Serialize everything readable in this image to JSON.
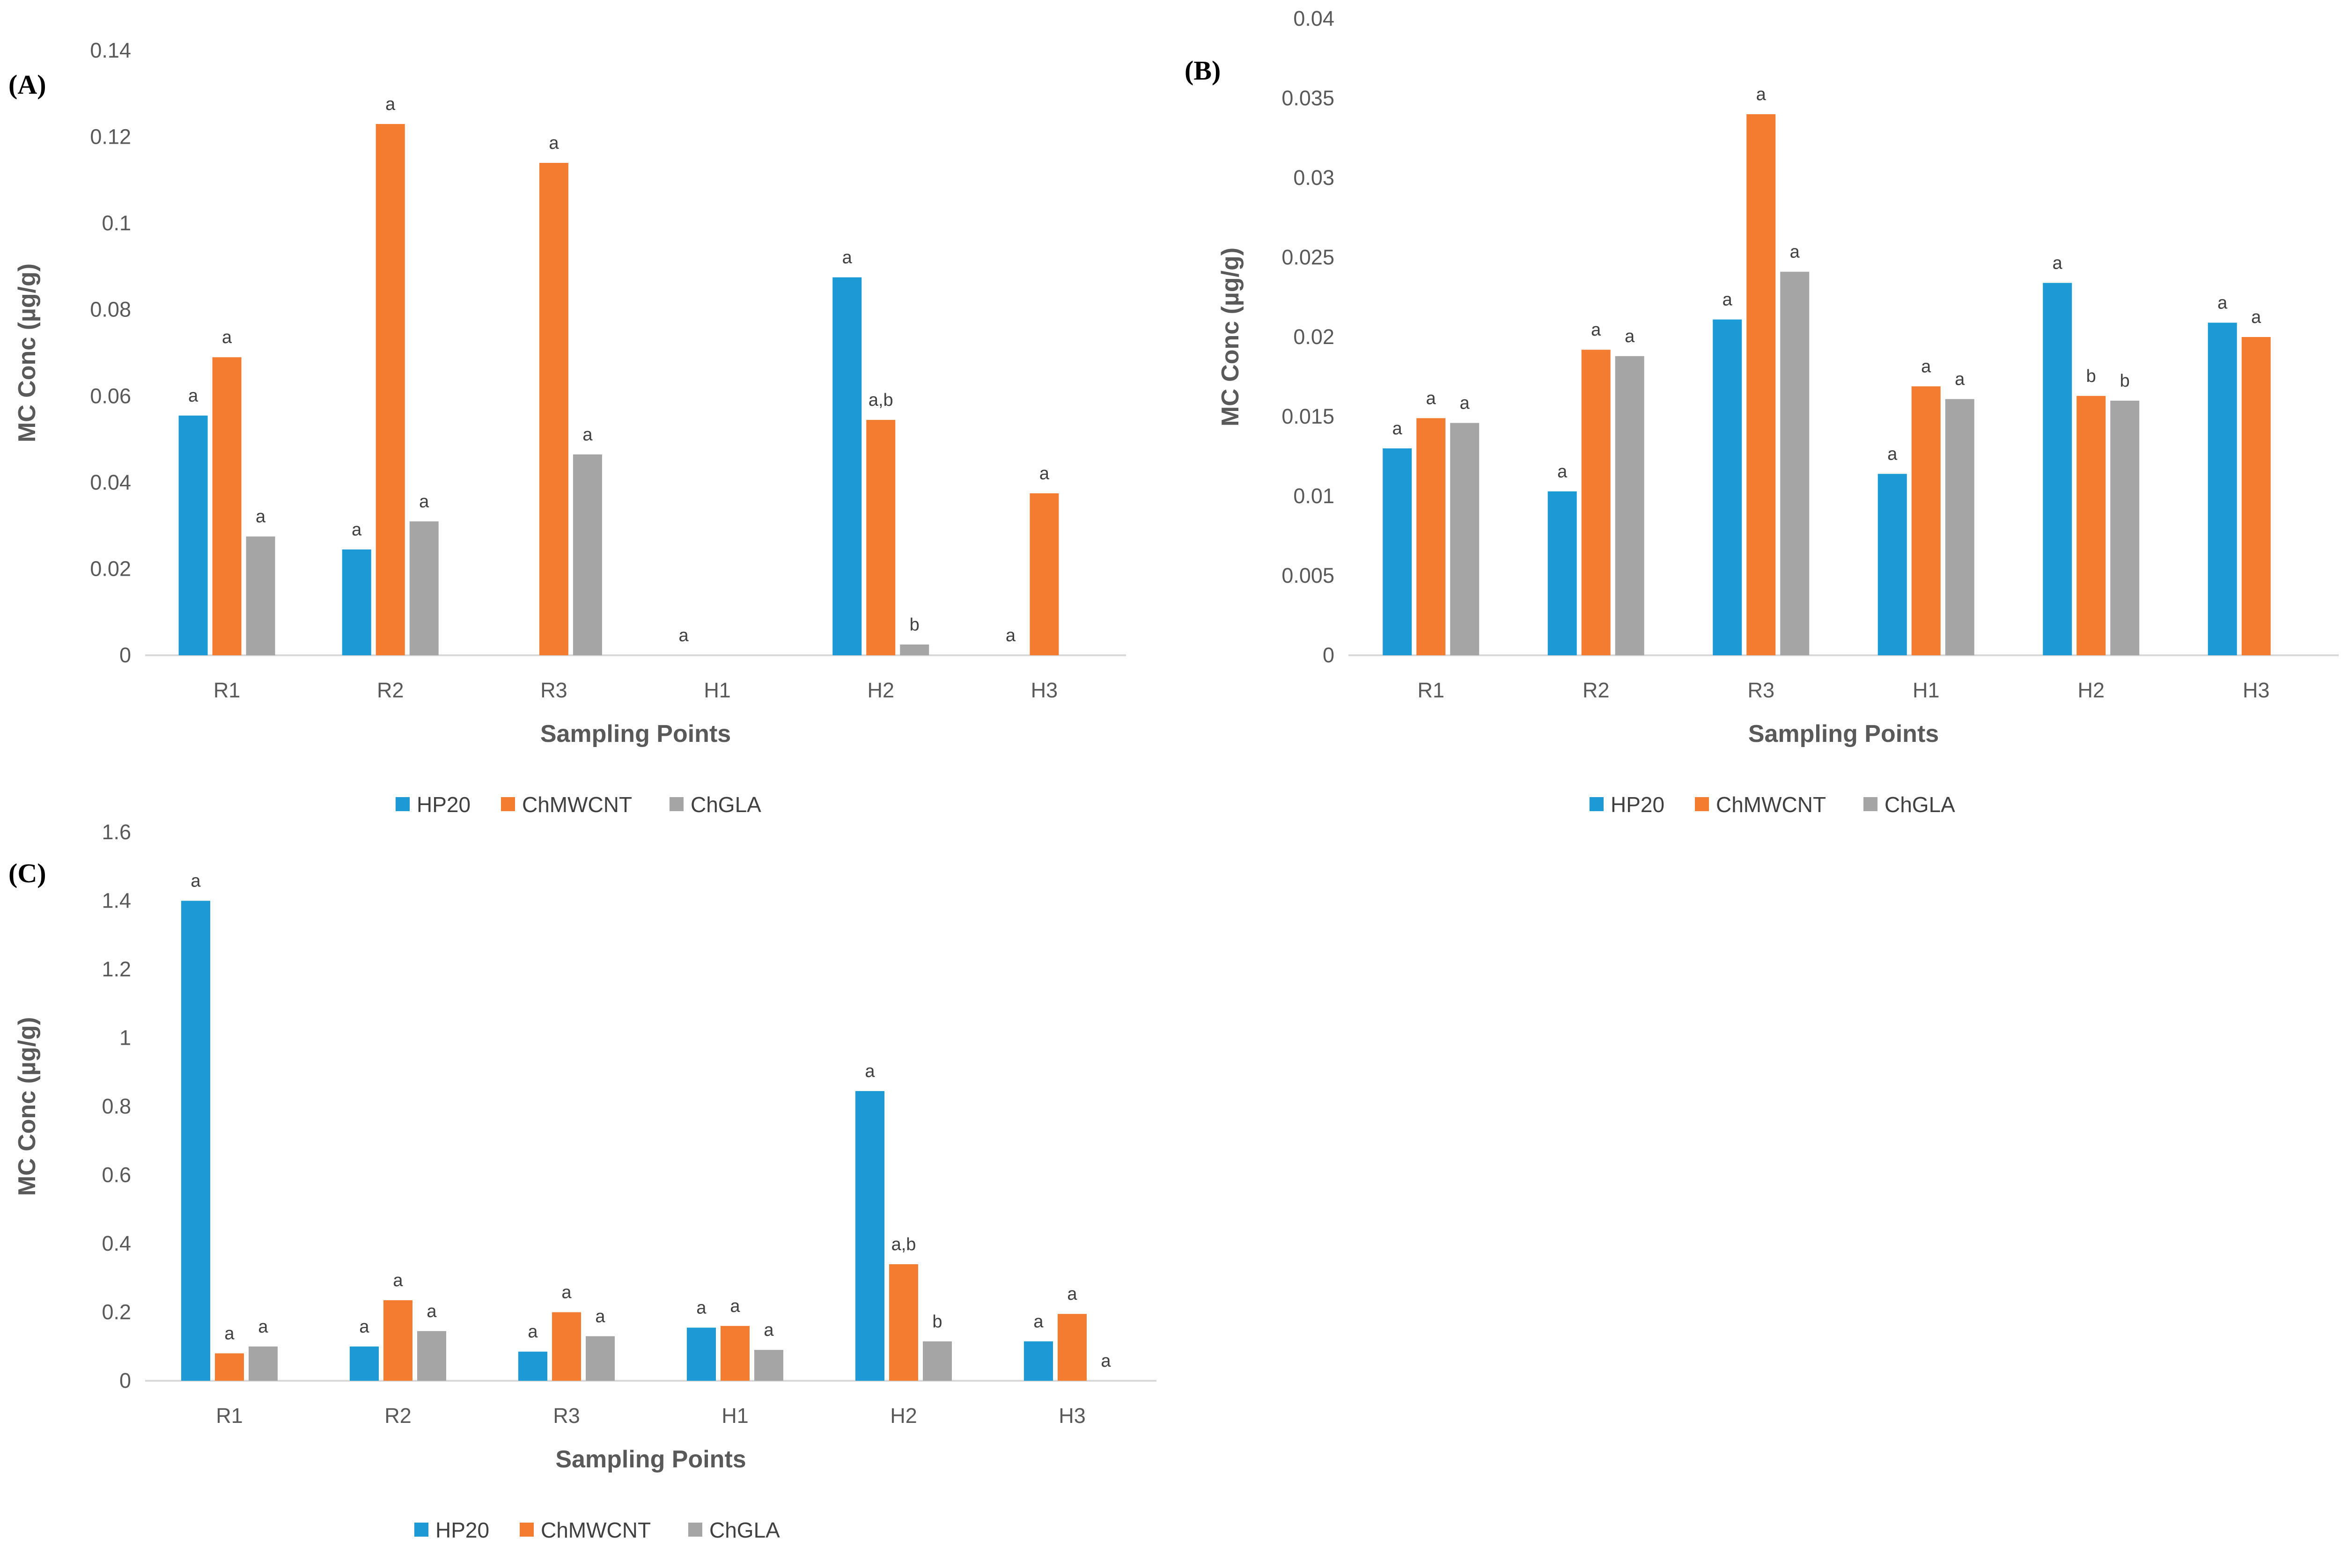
{
  "colors": {
    "HP20": "#1B9AD6",
    "ChMWCNT": "#F47C30",
    "ChGLA": "#A5A5A5",
    "axis": "#D9D9D9",
    "text": "#595959"
  },
  "chart_data": [
    {
      "type": "bar",
      "panel_label": "(A)",
      "categories": [
        "R1",
        "R2",
        "R3",
        "H1",
        "H2",
        "H3"
      ],
      "series": [
        {
          "name": "HP20",
          "values": [
            0.0555,
            0.0245,
            0,
            0,
            0.0875,
            0
          ]
        },
        {
          "name": "ChMWCNT",
          "values": [
            0.069,
            0.123,
            0.114,
            0,
            0.0545,
            0.0375
          ]
        },
        {
          "name": "ChGLA",
          "values": [
            0.0275,
            0.031,
            0.0465,
            0,
            0.0025,
            0
          ]
        }
      ],
      "data_labels": [
        {
          "category": "R1",
          "series": "HP20",
          "text": "a"
        },
        {
          "category": "R1",
          "series": "ChMWCNT",
          "text": "a"
        },
        {
          "category": "R1",
          "series": "ChGLA",
          "text": "a"
        },
        {
          "category": "R2",
          "series": "HP20",
          "text": "a"
        },
        {
          "category": "R2",
          "series": "ChMWCNT",
          "text": "a"
        },
        {
          "category": "R2",
          "series": "ChGLA",
          "text": "a"
        },
        {
          "category": "R3",
          "series": "ChMWCNT",
          "text": "a"
        },
        {
          "category": "R3",
          "series": "ChGLA",
          "text": "a"
        },
        {
          "category": "H1",
          "series": "HP20",
          "text": "a"
        },
        {
          "category": "H2",
          "series": "HP20",
          "text": "a"
        },
        {
          "category": "H2",
          "series": "ChMWCNT",
          "text": "a,b"
        },
        {
          "category": "H2",
          "series": "ChGLA",
          "text": "b"
        },
        {
          "category": "H3",
          "series": "HP20",
          "text": "a"
        },
        {
          "category": "H3",
          "series": "ChMWCNT",
          "text": "a"
        }
      ],
      "ylim": [
        0,
        0.14
      ],
      "yticks": [
        "0",
        "0.02",
        "0.04",
        "0.06",
        "0.08",
        "0.1",
        "0.12",
        "0.14"
      ],
      "xlabel": "Sampling Points",
      "ylabel": "MC Conc (µg/g)",
      "legend": [
        "HP20",
        "ChMWCNT",
        "ChGLA"
      ],
      "legend_position": "bottom",
      "grid": false
    },
    {
      "type": "bar",
      "panel_label": "(B)",
      "categories": [
        "R1",
        "R2",
        "R3",
        "H1",
        "H2",
        "H3"
      ],
      "series": [
        {
          "name": "HP20",
          "values": [
            0.013,
            0.0103,
            0.0211,
            0.0114,
            0.0234,
            0.0209
          ]
        },
        {
          "name": "ChMWCNT",
          "values": [
            0.0149,
            0.0192,
            0.034,
            0.0169,
            0.0163,
            0.02
          ]
        },
        {
          "name": "ChGLA",
          "values": [
            0.0146,
            0.0188,
            0.0241,
            0.0161,
            0.016,
            0
          ]
        }
      ],
      "data_labels": [
        {
          "category": "R1",
          "series": "HP20",
          "text": "a"
        },
        {
          "category": "R1",
          "series": "ChMWCNT",
          "text": "a"
        },
        {
          "category": "R1",
          "series": "ChGLA",
          "text": "a"
        },
        {
          "category": "R2",
          "series": "HP20",
          "text": "a"
        },
        {
          "category": "R2",
          "series": "ChMWCNT",
          "text": "a"
        },
        {
          "category": "R2",
          "series": "ChGLA",
          "text": "a"
        },
        {
          "category": "R3",
          "series": "HP20",
          "text": "a"
        },
        {
          "category": "R3",
          "series": "ChMWCNT",
          "text": "a"
        },
        {
          "category": "R3",
          "series": "ChGLA",
          "text": "a"
        },
        {
          "category": "H1",
          "series": "HP20",
          "text": "a"
        },
        {
          "category": "H1",
          "series": "ChMWCNT",
          "text": "a"
        },
        {
          "category": "H1",
          "series": "ChGLA",
          "text": "a"
        },
        {
          "category": "H2",
          "series": "HP20",
          "text": "a"
        },
        {
          "category": "H2",
          "series": "ChMWCNT",
          "text": "b"
        },
        {
          "category": "H2",
          "series": "ChGLA",
          "text": "b"
        },
        {
          "category": "H3",
          "series": "HP20",
          "text": "a"
        },
        {
          "category": "H3",
          "series": "ChMWCNT",
          "text": "a"
        }
      ],
      "ylim": [
        0,
        0.04
      ],
      "yticks": [
        "0",
        "0.005",
        "0.01",
        "0.015",
        "0.02",
        "0.025",
        "0.03",
        "0.035",
        "0.04"
      ],
      "xlabel": "Sampling Points",
      "ylabel": "MC Conc (µg/g)",
      "legend": [
        "HP20",
        "ChMWCNT",
        "ChGLA"
      ],
      "legend_position": "bottom",
      "grid": false
    },
    {
      "type": "bar",
      "panel_label": "(C)",
      "categories": [
        "R1",
        "R2",
        "R3",
        "H1",
        "H2",
        "H3"
      ],
      "series": [
        {
          "name": "HP20",
          "values": [
            1.4,
            0.1,
            0.085,
            0.155,
            0.845,
            0.115
          ]
        },
        {
          "name": "ChMWCNT",
          "values": [
            0.08,
            0.235,
            0.2,
            0.16,
            0.34,
            0.195
          ]
        },
        {
          "name": "ChGLA",
          "values": [
            0.1,
            0.145,
            0.13,
            0.09,
            0.115,
            0
          ]
        }
      ],
      "data_labels": [
        {
          "category": "R1",
          "series": "HP20",
          "text": "a"
        },
        {
          "category": "R1",
          "series": "ChMWCNT",
          "text": "a"
        },
        {
          "category": "R1",
          "series": "ChGLA",
          "text": "a"
        },
        {
          "category": "R2",
          "series": "HP20",
          "text": "a"
        },
        {
          "category": "R2",
          "series": "ChMWCNT",
          "text": "a"
        },
        {
          "category": "R2",
          "series": "ChGLA",
          "text": "a"
        },
        {
          "category": "R3",
          "series": "HP20",
          "text": "a"
        },
        {
          "category": "R3",
          "series": "ChMWCNT",
          "text": "a"
        },
        {
          "category": "R3",
          "series": "ChGLA",
          "text": "a"
        },
        {
          "category": "H1",
          "series": "HP20",
          "text": "a"
        },
        {
          "category": "H1",
          "series": "ChMWCNT",
          "text": "a"
        },
        {
          "category": "H1",
          "series": "ChGLA",
          "text": "a"
        },
        {
          "category": "H2",
          "series": "HP20",
          "text": "a"
        },
        {
          "category": "H2",
          "series": "ChMWCNT",
          "text": "a,b"
        },
        {
          "category": "H2",
          "series": "ChGLA",
          "text": "b"
        },
        {
          "category": "H3",
          "series": "HP20",
          "text": "a"
        },
        {
          "category": "H3",
          "series": "ChMWCNT",
          "text": "a"
        },
        {
          "category": "H3",
          "series": "ChGLA",
          "text": "a"
        }
      ],
      "ylim": [
        0,
        1.6
      ],
      "yticks": [
        "0",
        "0.2",
        "0.4",
        "0.6",
        "0.8",
        "1",
        "1.2",
        "1.4",
        "1.6"
      ],
      "xlabel": "Sampling Points",
      "ylabel": "MC Conc (µg/g)",
      "legend": [
        "HP20",
        "ChMWCNT",
        "ChGLA"
      ],
      "legend_position": "bottom",
      "grid": false
    }
  ]
}
